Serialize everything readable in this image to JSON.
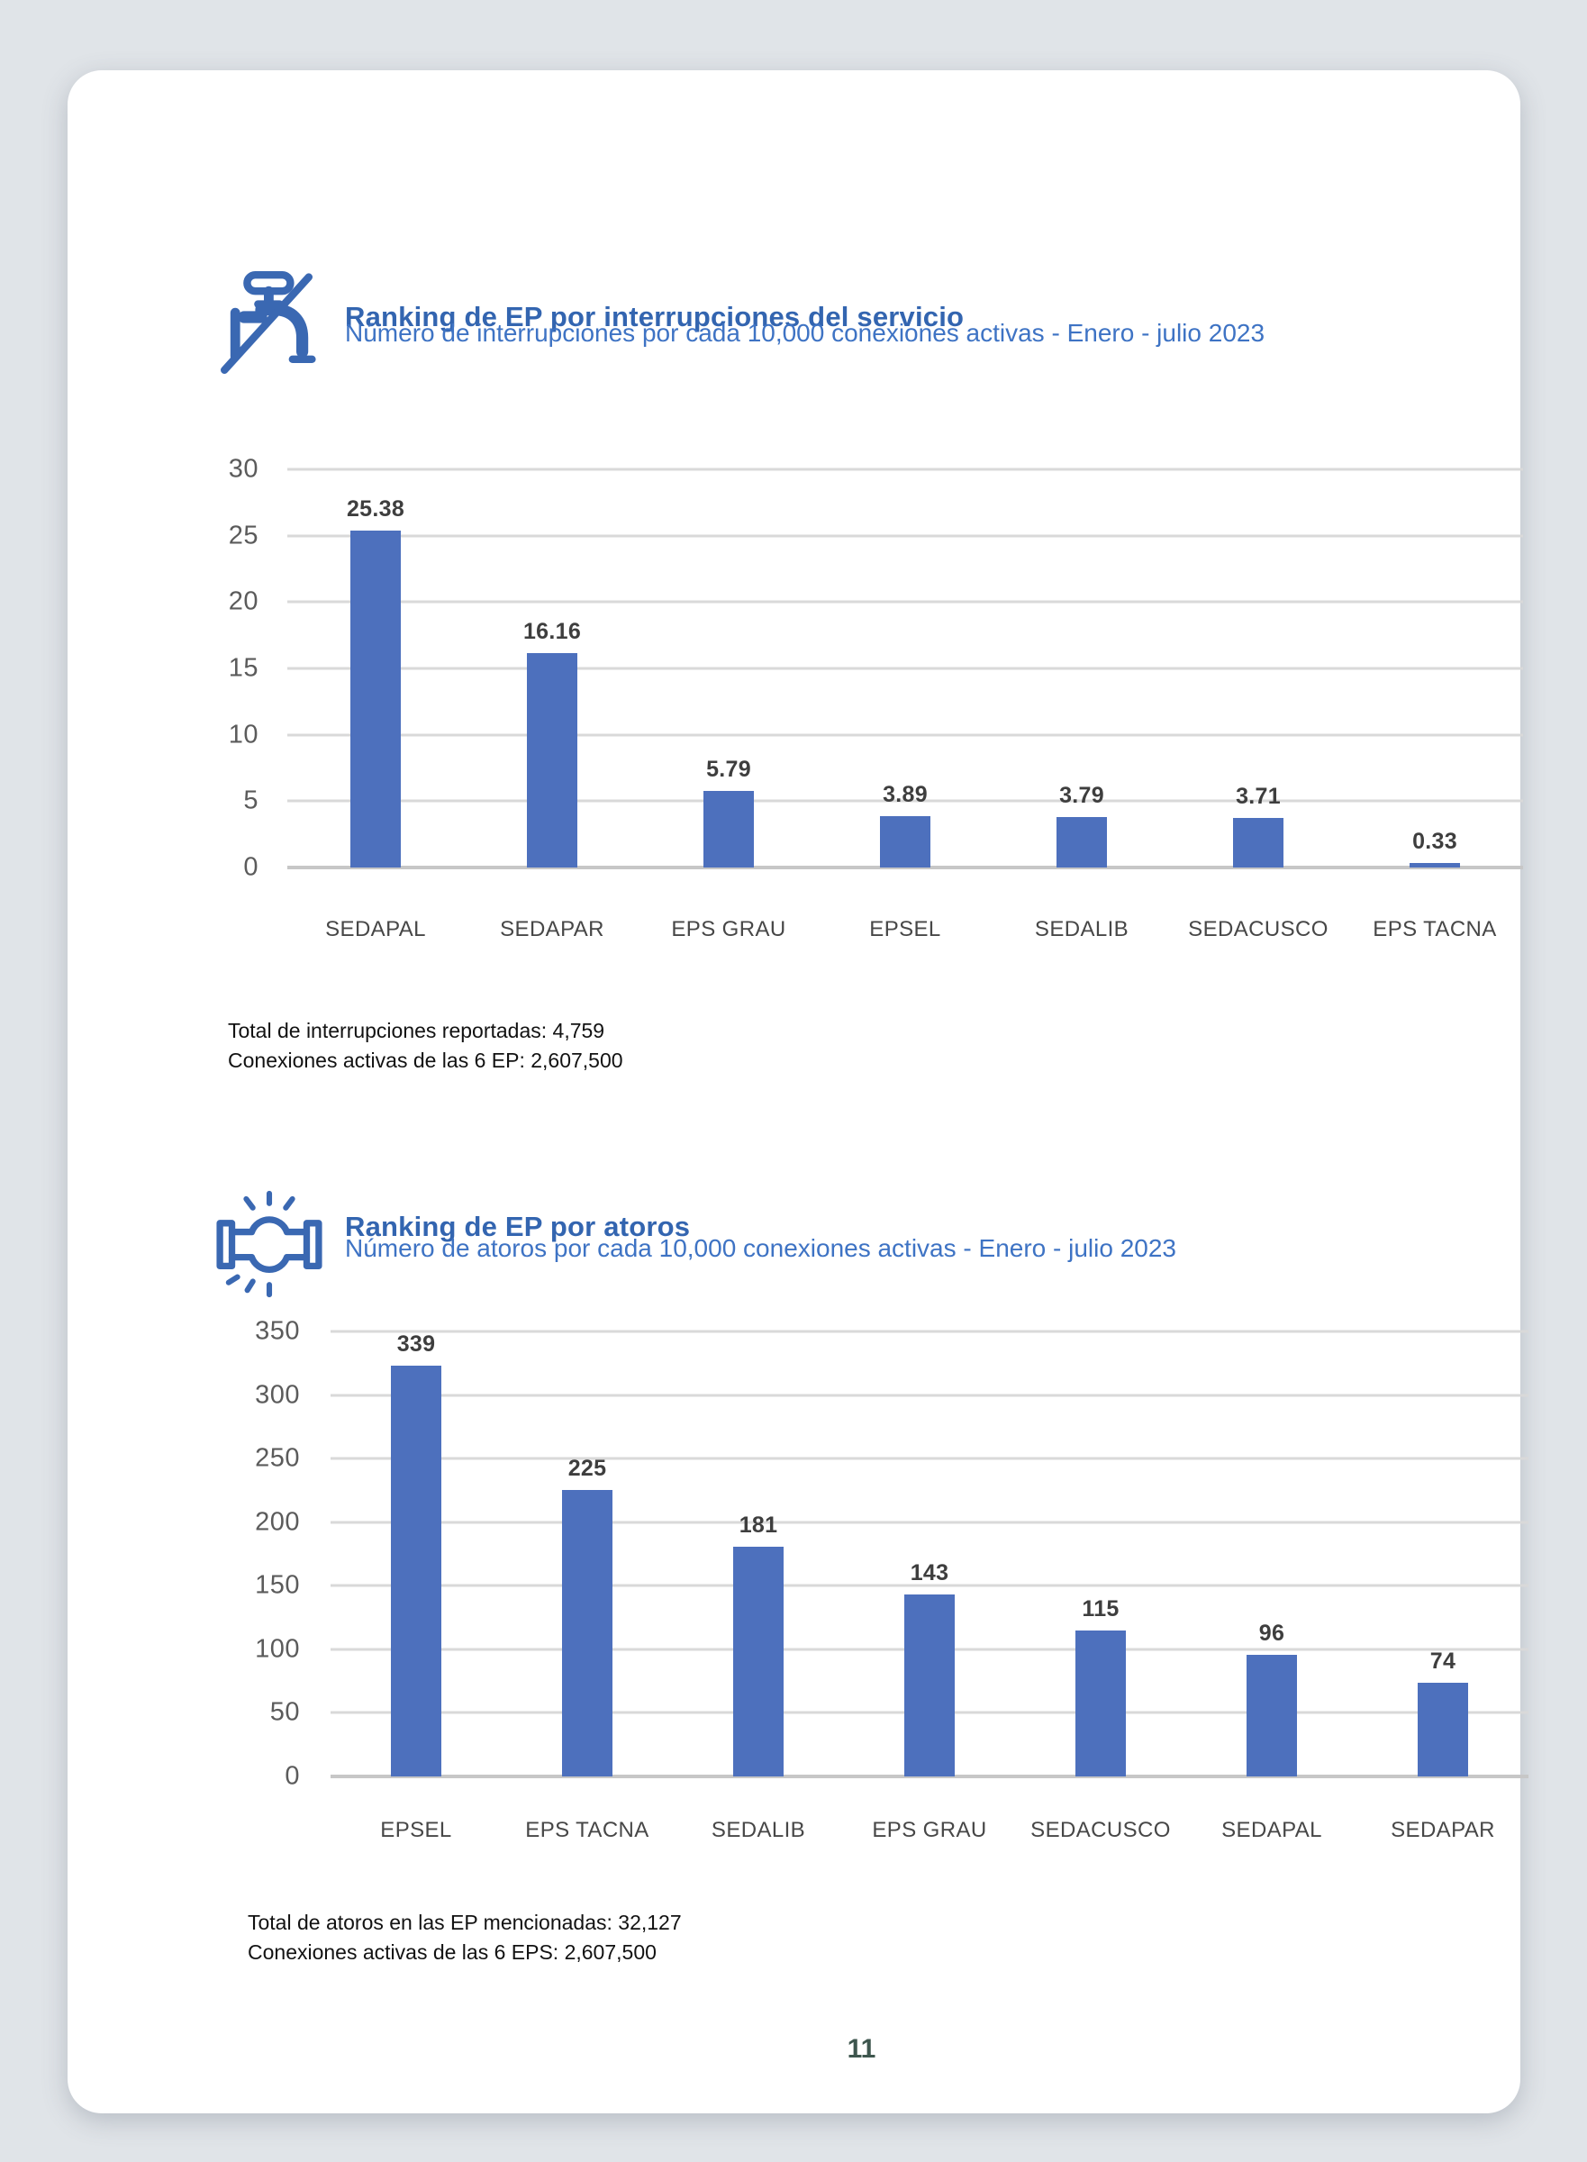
{
  "page_number": "11",
  "colors": {
    "background": "#e0e4e8",
    "card": "#ffffff",
    "title_blue": "#3365b0",
    "subtitle_blue": "#3e73c4",
    "icon_blue": "#3a68b2",
    "bar_blue": "#4d70bd",
    "gridline_gray": "#d9d9d9",
    "page_number_color": "#3e564e"
  },
  "chart_data": [
    {
      "type": "bar",
      "icon": "faucet-off-icon",
      "title": "Ranking de EP por interrupciones del servicio",
      "subtitle": "Número de interrupciones por cada 10,000 conexiones activas - Enero - julio 2023",
      "categories": [
        "SEDAPAL",
        "SEDAPAR",
        "EPS GRAU",
        "EPSEL",
        "SEDALIB",
        "SEDACUSCO",
        "EPS TACNA"
      ],
      "values": [
        25.38,
        16.16,
        5.79,
        3.89,
        3.79,
        3.71,
        0.33
      ],
      "value_labels": [
        "25.38",
        "16.16",
        "5.79",
        "3.89",
        "3.79",
        "3.71",
        "0.33"
      ],
      "ylim": [
        0,
        30
      ],
      "yticks": [
        0,
        5,
        10,
        15,
        20,
        25,
        30
      ],
      "grid": true,
      "legend": "none",
      "bar_color": "#4d70bd",
      "footnotes": [
        "Total de interrupciones reportadas: 4,759",
        "Conexiones activas de las 6 EP: 2,607,500"
      ]
    },
    {
      "type": "bar",
      "icon": "pipe-burst-icon",
      "title": "Ranking de EP por atoros",
      "subtitle": "Número de atoros por cada 10,000 conexiones activas - Enero - julio 2023",
      "categories": [
        "EPSEL",
        "EPS TACNA",
        "SEDALIB",
        "EPS GRAU",
        "SEDACUSCO",
        "SEDAPAL",
        "SEDAPAR"
      ],
      "values": [
        339,
        225,
        181,
        143,
        115,
        96,
        74
      ],
      "value_labels": [
        "339",
        "225",
        "181",
        "143",
        "115",
        "96",
        "74"
      ],
      "ylim": [
        0,
        350
      ],
      "yticks": [
        0,
        50,
        100,
        150,
        200,
        250,
        300,
        350
      ],
      "grid": true,
      "legend": "none",
      "bar_color": "#4d70bd",
      "footnotes": [
        "Total de atoros en las EP mencionadas: 32,127",
        "Conexiones activas de las 6 EPS: 2,607,500"
      ]
    }
  ]
}
